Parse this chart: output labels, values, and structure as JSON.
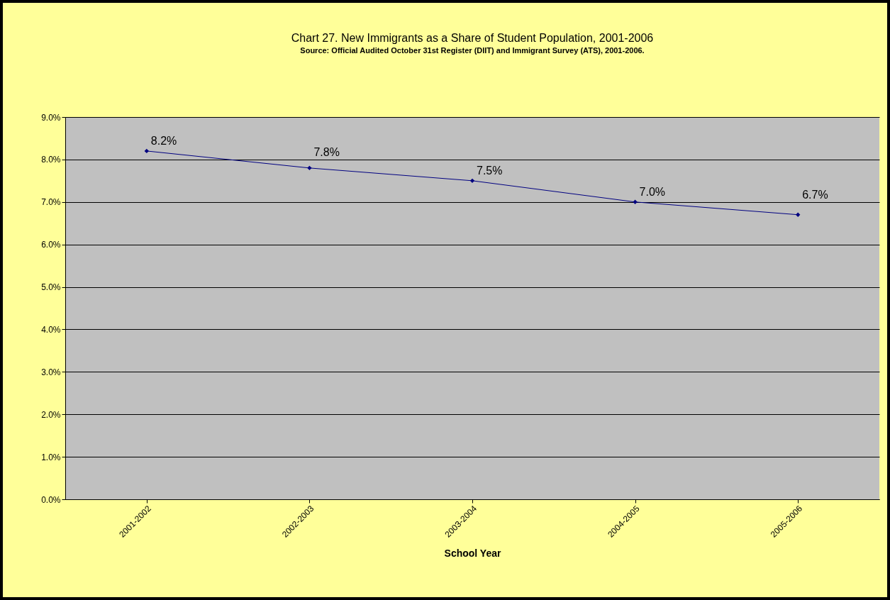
{
  "chart_data": {
    "type": "line",
    "title": "Chart 27. New Immigrants as a Share of Student Population, 2001-2006",
    "subtitle": "Source: Official Audited October 31st Register (DIIT) and Immigrant Survey (ATS), 2001-2006.",
    "xlabel": "School Year",
    "categories": [
      "2001-2002",
      "2002-2003",
      "2003-2004",
      "2004-2005",
      "2005-2006"
    ],
    "series": [
      {
        "color": "#000080",
        "values": [
          8.2,
          7.8,
          7.5,
          7.0,
          6.7
        ],
        "value_labels": [
          "8.2%",
          "7.8%",
          "7.5%",
          "7.0%",
          "6.7%"
        ]
      }
    ],
    "ylim": [
      0,
      9
    ],
    "yticks": [
      {
        "value": 0,
        "label": "0.0%"
      },
      {
        "value": 1,
        "label": "1.0%"
      },
      {
        "value": 2,
        "label": "2.0%"
      },
      {
        "value": 3,
        "label": "3.0%"
      },
      {
        "value": 4,
        "label": "4.0%"
      },
      {
        "value": 5,
        "label": "5.0%"
      },
      {
        "value": 6,
        "label": "6.0%"
      },
      {
        "value": 7,
        "label": "7.0%"
      },
      {
        "value": 8,
        "label": "8.0%"
      },
      {
        "value": 9,
        "label": "9.0%"
      }
    ],
    "grid": "y",
    "marker": "diamond"
  }
}
